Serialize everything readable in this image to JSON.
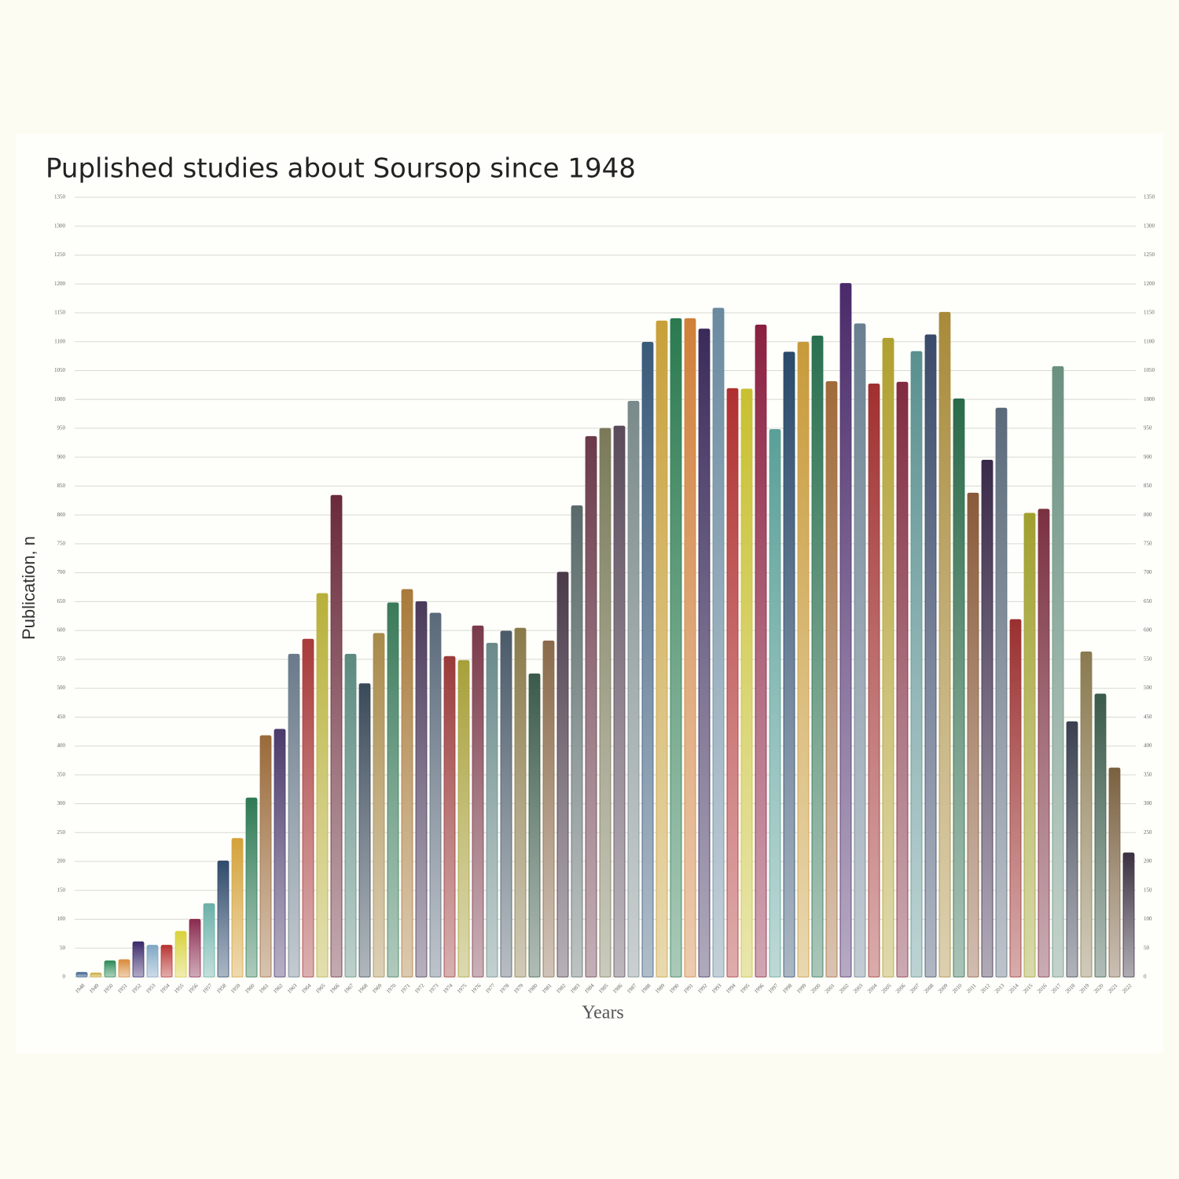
{
  "chart_data": {
    "type": "bar",
    "title": "Puplished studies about Soursop since 1948",
    "y_label": "Publication, n",
    "x_label": "Years",
    "categories": [
      "1948",
      "1949",
      "1950",
      "1951",
      "1952",
      "1953",
      "1954",
      "1955",
      "1956",
      "1957",
      "1958",
      "1959",
      "1960",
      "1961",
      "1962",
      "1963",
      "1964",
      "1965",
      "1966",
      "1967",
      "1968",
      "1969",
      "1970",
      "1971",
      "1972",
      "1973",
      "1974",
      "1975",
      "1976",
      "1977",
      "1978",
      "1979",
      "1980",
      "1981",
      "1982",
      "1983",
      "1984",
      "1985",
      "1986",
      "1987",
      "1988",
      "1989",
      "1990",
      "1991",
      "1992",
      "1993",
      "1994",
      "1995",
      "1996",
      "1997",
      "1998",
      "1999",
      "2000",
      "2001",
      "2002",
      "2003",
      "2004",
      "2005",
      "2006",
      "2007",
      "2008",
      "2009",
      "2010",
      "2011",
      "2012",
      "2013",
      "2014",
      "2015",
      "2016",
      "2017",
      "2018",
      "2019",
      "2020",
      "2021",
      "2022"
    ],
    "values": [
      8,
      7,
      28,
      30,
      61,
      55,
      55,
      79,
      100,
      127,
      201,
      240,
      310,
      418,
      429,
      559,
      585,
      664,
      834,
      559,
      508,
      595,
      648,
      671,
      650,
      630,
      555,
      548,
      608,
      578,
      599,
      604,
      525,
      582,
      701,
      816,
      936,
      950,
      954,
      997,
      1099,
      1136,
      1140,
      1140,
      1122,
      1158,
      1019,
      1018,
      1129,
      948,
      1082,
      1099,
      1110,
      1031,
      1201,
      1131,
      1027,
      1106,
      1030,
      1083,
      1112,
      1151,
      1001,
      838,
      895,
      985,
      619,
      803,
      810,
      1057,
      442,
      563,
      490,
      362,
      215
    ],
    "colors": [
      "#3a5f8a",
      "#c9a93a",
      "#2e8b57",
      "#d98a3a",
      "#3b2a6b",
      "#7fa6c4",
      "#b83232",
      "#d8d23a",
      "#8a2a4f",
      "#6ab0a8",
      "#2f4a6b",
      "#d4a23a",
      "#2f7a55",
      "#9a6a3a",
      "#4a3a6b",
      "#6a7a8a",
      "#a83a3a",
      "#b8b03a",
      "#6a2a3a",
      "#5a8a80",
      "#3a4a5a",
      "#a88a4a",
      "#3a7a5a",
      "#a87a3a",
      "#4a3a5a",
      "#5a6a7a",
      "#9a3a3a",
      "#a8a03a",
      "#7a3a4a",
      "#6a8a8a",
      "#4a5a6a",
      "#8a7a4a",
      "#3a5a4a",
      "#8a6a4a",
      "#4a3a4a",
      "#5a6a6a",
      "#6a3a4a",
      "#7a7a5a",
      "#5a4a5a",
      "#7a8a8a",
      "#3a5a7a",
      "#c8a03a",
      "#2a7a50",
      "#d0803a",
      "#3a2a5a",
      "#6a8aa0",
      "#b03030",
      "#c8c030",
      "#8a2040",
      "#5aa098",
      "#2a4a6a",
      "#c89a3a",
      "#2a7050",
      "#a06a3a",
      "#4a2a6a",
      "#6a8090",
      "#a03030",
      "#b0a030",
      "#802a40",
      "#5a9090",
      "#3a4a6a",
      "#a88a3a",
      "#2a6a4a",
      "#8a5a3a",
      "#3a2a4a",
      "#5a6a7a",
      "#9a3030",
      "#a0a030",
      "#7a3040",
      "#6a9080",
      "#3a4050",
      "#8a7a50",
      "#3a5a4a",
      "#7a6040",
      "#3a3040"
    ],
    "ylim": [
      0,
      1350
    ],
    "yticks": [
      0,
      50,
      100,
      150,
      200,
      250,
      300,
      350,
      400,
      450,
      500,
      550,
      600,
      650,
      700,
      750,
      800,
      850,
      900,
      950,
      1000,
      1050,
      1100,
      1150,
      1200,
      1250,
      1300,
      1350
    ],
    "grid": true
  }
}
